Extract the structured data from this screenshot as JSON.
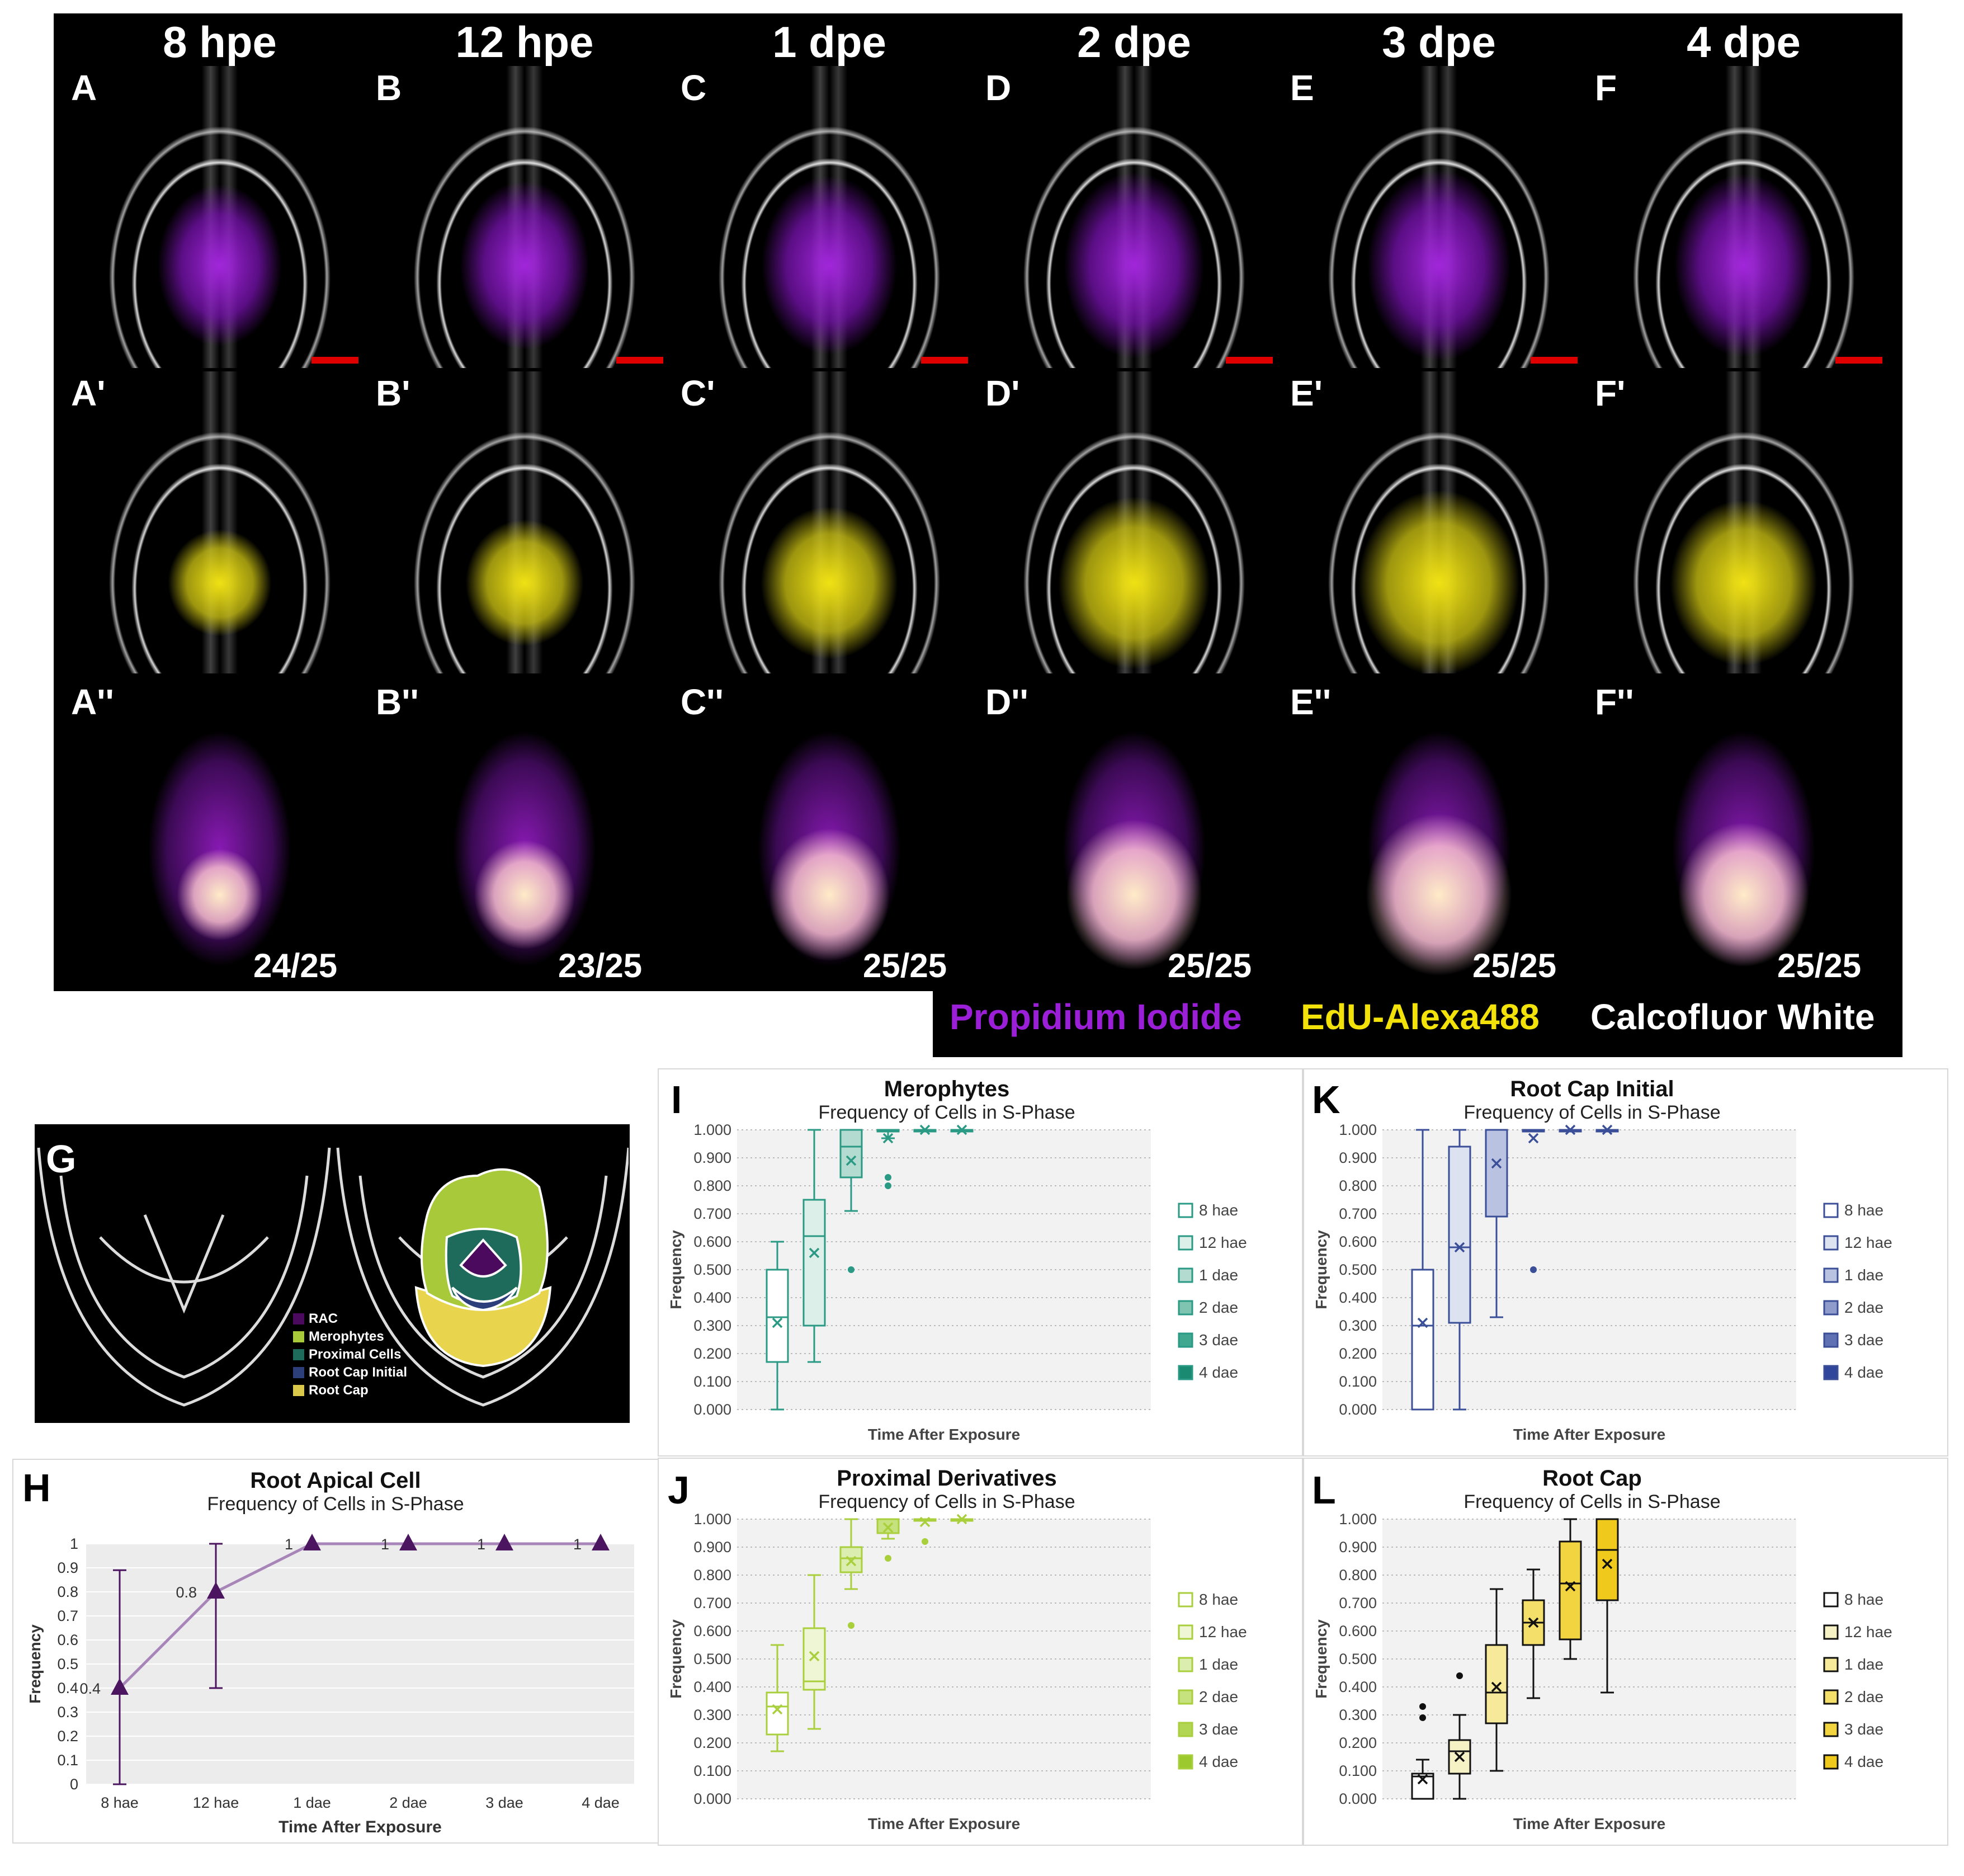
{
  "micrographs": {
    "columns": [
      "8 hpe",
      "12 hpe",
      "1 dpe",
      "2 dpe",
      "3 dpe",
      "4 dpe"
    ],
    "row1_labels": [
      "A",
      "B",
      "C",
      "D",
      "E",
      "F"
    ],
    "row2_labels": [
      "A'",
      "B'",
      "C'",
      "D'",
      "E'",
      "F'"
    ],
    "row3_labels": [
      "A''",
      "B''",
      "C''",
      "D''",
      "E''",
      "F''"
    ],
    "counts": [
      "24/25",
      "23/25",
      "25/25",
      "25/25",
      "25/25",
      "25/25"
    ],
    "stains": [
      {
        "label": "Propidium Iodide",
        "color": "#9b1fd6"
      },
      {
        "label": "EdU-Alexa488",
        "color": "#f2e20a"
      },
      {
        "label": "Calcofluor White",
        "color": "#ffffff"
      }
    ]
  },
  "panel_g": {
    "label": "G",
    "legend": [
      {
        "label": "RAC",
        "color": "#4b0a5e"
      },
      {
        "label": "Merophytes",
        "color": "#a7c93a"
      },
      {
        "label": "Proximal Cells",
        "color": "#1e6b5c"
      },
      {
        "label": "Root Cap Initial",
        "color": "#2d3f7a"
      },
      {
        "label": "Root Cap",
        "color": "#d9c84a"
      }
    ]
  },
  "chart_data": [
    {
      "panel": "H",
      "type": "line",
      "title": "Root Apical Cell",
      "subtitle": "Frequency of Cells in S-Phase",
      "xlabel": "Time After Exposure",
      "ylabel": "Frequency",
      "categories": [
        "8 hae",
        "12 hae",
        "1 dae",
        "2 dae",
        "3 dae",
        "4 dae"
      ],
      "values": [
        0.4,
        0.8,
        1,
        1,
        1,
        1
      ],
      "error_low": [
        0,
        0.4,
        1,
        1,
        1,
        1
      ],
      "error_high": [
        0.89,
        1,
        1,
        1,
        1,
        1
      ],
      "data_labels": [
        "0.4",
        "0.8",
        "1",
        "1",
        "1",
        "1"
      ],
      "yticks": [
        "0",
        "0.1",
        "0.2",
        "0.3",
        "0.4",
        "0.5",
        "0.6",
        "0.7",
        "0.8",
        "0.9",
        "1"
      ],
      "ylim": [
        0,
        1
      ],
      "color": "#4b1560"
    },
    {
      "panel": "I",
      "type": "box",
      "title": "Merophytes",
      "subtitle": "Frequency of Cells in S-Phase",
      "xlabel": "Time After Exposure",
      "ylabel": "Frequency",
      "ylim": [
        0,
        1
      ],
      "yticks": [
        "0.000",
        "0.100",
        "0.200",
        "0.300",
        "0.400",
        "0.500",
        "0.600",
        "0.700",
        "0.800",
        "0.900",
        "1.000"
      ],
      "legend": [
        "8 hae",
        "12 hae",
        "1 dae",
        "2 dae",
        "3 dae",
        "4 dae"
      ],
      "stroke": "#2a9a84",
      "fills": [
        "#ffffff",
        "#dcefe9",
        "#b3dbd0",
        "#7fc3b1",
        "#3fa88f",
        "#1a8a70"
      ],
      "boxes": [
        {
          "min": 0,
          "q1": 0.17,
          "median": 0.33,
          "q3": 0.5,
          "max": 0.6,
          "mean": 0.31,
          "outliers": []
        },
        {
          "min": 0.17,
          "q1": 0.3,
          "median": 0.62,
          "q3": 0.75,
          "max": 1,
          "mean": 0.56,
          "outliers": []
        },
        {
          "min": 0.71,
          "q1": 0.83,
          "median": 0.94,
          "q3": 1,
          "max": 1,
          "mean": 0.89,
          "outliers": [
            0.5
          ]
        },
        {
          "min": 0.97,
          "q1": 1,
          "median": 1,
          "q3": 1,
          "max": 1,
          "mean": 0.97,
          "outliers": [
            0.8,
            0.83
          ]
        },
        {
          "min": 1,
          "q1": 1,
          "median": 1,
          "q3": 1,
          "max": 1,
          "mean": 1,
          "outliers": []
        },
        {
          "min": 1,
          "q1": 1,
          "median": 1,
          "q3": 1,
          "max": 1,
          "mean": 1,
          "outliers": []
        }
      ]
    },
    {
      "panel": "J",
      "type": "box",
      "title": "Proximal Derivatives",
      "subtitle": "Frequency of Cells in S-Phase",
      "xlabel": "Time After Exposure",
      "ylabel": "Frequency",
      "ylim": [
        0,
        1
      ],
      "yticks": [
        "0.000",
        "0.100",
        "0.200",
        "0.300",
        "0.400",
        "0.500",
        "0.600",
        "0.700",
        "0.800",
        "0.900",
        "1.000"
      ],
      "legend": [
        "8 hae",
        "12 hae",
        "1 dae",
        "2 dae",
        "3 dae",
        "4 dae"
      ],
      "stroke": "#a9cf3c",
      "fills": [
        "#ffffff",
        "#eef6d6",
        "#dcedb0",
        "#c6e27e",
        "#b1d653",
        "#9cca2e"
      ],
      "boxes": [
        {
          "min": 0.17,
          "q1": 0.23,
          "median": 0.33,
          "q3": 0.38,
          "max": 0.55,
          "mean": 0.32,
          "outliers": []
        },
        {
          "min": 0.25,
          "q1": 0.39,
          "median": 0.42,
          "q3": 0.61,
          "max": 0.8,
          "mean": 0.51,
          "outliers": []
        },
        {
          "min": 0.75,
          "q1": 0.81,
          "median": 0.86,
          "q3": 0.9,
          "max": 1,
          "mean": 0.85,
          "outliers": [
            0.62
          ]
        },
        {
          "min": 0.93,
          "q1": 0.95,
          "median": 1,
          "q3": 1,
          "max": 1,
          "mean": 0.97,
          "outliers": [
            0.86
          ]
        },
        {
          "min": 1,
          "q1": 1,
          "median": 1,
          "q3": 1,
          "max": 1,
          "mean": 0.99,
          "outliers": [
            0.92
          ]
        },
        {
          "min": 1,
          "q1": 1,
          "median": 1,
          "q3": 1,
          "max": 1,
          "mean": 1,
          "outliers": []
        }
      ]
    },
    {
      "panel": "K",
      "type": "box",
      "title": "Root Cap Initial",
      "subtitle": "Frequency of Cells in S-Phase",
      "xlabel": "Time After Exposure",
      "ylabel": "Frequency",
      "ylim": [
        0,
        1
      ],
      "yticks": [
        "0.000",
        "0.100",
        "0.200",
        "0.300",
        "0.400",
        "0.500",
        "0.600",
        "0.700",
        "0.800",
        "0.900",
        "1.000"
      ],
      "legend": [
        "8 hae",
        "12 hae",
        "1 dae",
        "2 dae",
        "3 dae",
        "4 dae"
      ],
      "stroke": "#3b4f98",
      "fills": [
        "#ffffff",
        "#dde2f0",
        "#b9c2e0",
        "#8e9bcb",
        "#5f71b3",
        "#30469a"
      ],
      "boxes": [
        {
          "min": 0,
          "q1": 0,
          "median": 0.3,
          "q3": 0.5,
          "max": 1,
          "mean": 0.31,
          "outliers": []
        },
        {
          "min": 0,
          "q1": 0.31,
          "median": 0.58,
          "q3": 0.94,
          "max": 1,
          "mean": 0.58,
          "outliers": []
        },
        {
          "min": 0.33,
          "q1": 0.69,
          "median": 1,
          "q3": 1,
          "max": 1,
          "mean": 0.88,
          "outliers": []
        },
        {
          "min": 1,
          "q1": 1,
          "median": 1,
          "q3": 1,
          "max": 1,
          "mean": 0.97,
          "outliers": [
            0.5
          ]
        },
        {
          "min": 1,
          "q1": 1,
          "median": 1,
          "q3": 1,
          "max": 1,
          "mean": 1,
          "outliers": []
        },
        {
          "min": 1,
          "q1": 1,
          "median": 1,
          "q3": 1,
          "max": 1,
          "mean": 1,
          "outliers": []
        }
      ]
    },
    {
      "panel": "L",
      "type": "box",
      "title": "Root Cap",
      "subtitle": "Frequency of Cells in S-Phase",
      "xlabel": "Time After Exposure",
      "ylabel": "Frequency",
      "ylim": [
        0,
        1
      ],
      "yticks": [
        "0.000",
        "0.100",
        "0.200",
        "0.300",
        "0.400",
        "0.500",
        "0.600",
        "0.700",
        "0.800",
        "0.900",
        "1.000"
      ],
      "legend": [
        "8 hae",
        "12 hae",
        "1 dae",
        "2 dae",
        "3 dae",
        "4 dae"
      ],
      "stroke": "#111111",
      "fills": [
        "#ffffff",
        "#f7f1c6",
        "#f6ea9a",
        "#f3df6a",
        "#f1d43f",
        "#efca1c"
      ],
      "boxes": [
        {
          "min": 0,
          "q1": 0,
          "median": 0.08,
          "q3": 0.09,
          "max": 0.14,
          "mean": 0.07,
          "outliers": [
            0.29,
            0.33
          ]
        },
        {
          "min": 0,
          "q1": 0.09,
          "median": 0.17,
          "q3": 0.21,
          "max": 0.3,
          "mean": 0.15,
          "outliers": [
            0.44
          ]
        },
        {
          "min": 0.1,
          "q1": 0.27,
          "median": 0.38,
          "q3": 0.55,
          "max": 0.75,
          "mean": 0.4,
          "outliers": []
        },
        {
          "min": 0.36,
          "q1": 0.55,
          "median": 0.63,
          "q3": 0.71,
          "max": 0.82,
          "mean": 0.63,
          "outliers": []
        },
        {
          "min": 0.5,
          "q1": 0.57,
          "median": 0.77,
          "q3": 0.92,
          "max": 1,
          "mean": 0.76,
          "outliers": []
        },
        {
          "min": 0.38,
          "q1": 0.71,
          "median": 0.89,
          "q3": 1,
          "max": 1,
          "mean": 0.84,
          "outliers": []
        }
      ]
    }
  ]
}
